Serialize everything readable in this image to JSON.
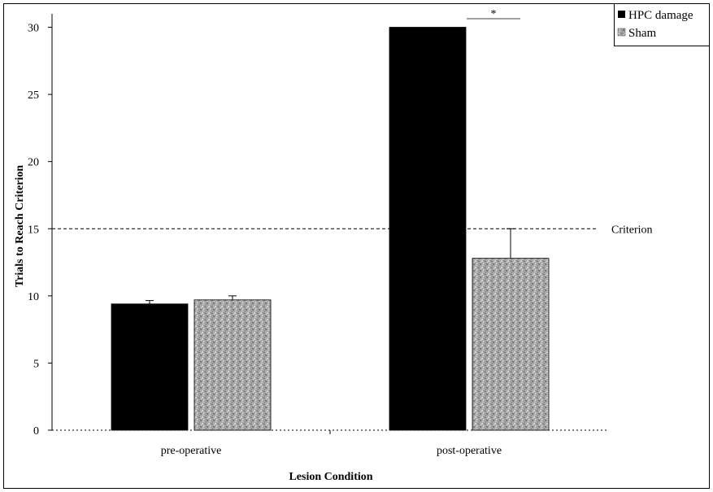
{
  "chart_data": {
    "type": "bar",
    "categories": [
      "pre-operative",
      "post-operative"
    ],
    "series": [
      {
        "name": "HPC damage",
        "values": [
          9.4,
          30
        ],
        "error": [
          0.25,
          0
        ],
        "color": "#000000",
        "pattern": "solid"
      },
      {
        "name": "Sham",
        "values": [
          9.7,
          12.8
        ],
        "error": [
          0.3,
          2.2
        ],
        "color": "#a8a8a8",
        "pattern": "speckled"
      }
    ],
    "xlabel": "Lesion Condition",
    "ylabel": "Trials to Reach Criterion",
    "ylim": [
      0,
      31
    ],
    "yticks": [
      0,
      5,
      10,
      15,
      20,
      25,
      30
    ],
    "reference_line": {
      "value": 15,
      "label": "Criterion",
      "style": "dashed"
    },
    "significance": {
      "label": "*",
      "category": "post-operative"
    },
    "legend": {
      "position": "top-right"
    },
    "grid": false
  }
}
